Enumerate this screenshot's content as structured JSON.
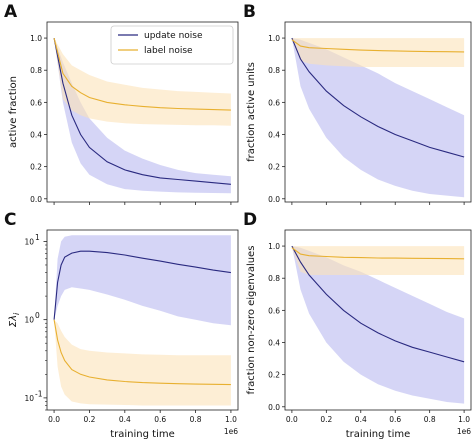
{
  "colors": {
    "update_noise": "#2a2a80",
    "update_noise_band": "#b9b9f0",
    "label_noise": "#e8b030",
    "label_noise_band": "#fbe2b9"
  },
  "legend": {
    "update_label": "update noise",
    "label_label": "label noise"
  },
  "chart_data": [
    {
      "panel": "A",
      "type": "line",
      "xlabel": "",
      "ylabel": "active fraction",
      "xlim": [
        -0.04,
        1.04
      ],
      "ylim": [
        -0.02,
        1.1
      ],
      "xticks": [],
      "yticks": [
        "0.0",
        "0.2",
        "0.4",
        "0.6",
        "0.8",
        "1.0"
      ],
      "x_multiplier": "",
      "legend": true,
      "series": [
        {
          "name": "update noise",
          "x": [
            0,
            0.05,
            0.1,
            0.15,
            0.2,
            0.3,
            0.4,
            0.5,
            0.6,
            0.7,
            0.8,
            0.9,
            1.0
          ],
          "y": [
            1.0,
            0.72,
            0.52,
            0.4,
            0.32,
            0.23,
            0.18,
            0.15,
            0.13,
            0.12,
            0.11,
            0.1,
            0.09
          ],
          "lower": [
            1.0,
            0.6,
            0.35,
            0.22,
            0.15,
            0.09,
            0.06,
            0.05,
            0.045,
            0.04,
            0.038,
            0.036,
            0.035
          ],
          "upper": [
            1.0,
            0.85,
            0.72,
            0.6,
            0.5,
            0.38,
            0.3,
            0.25,
            0.21,
            0.18,
            0.16,
            0.15,
            0.14
          ]
        },
        {
          "name": "label noise",
          "x": [
            0,
            0.05,
            0.1,
            0.15,
            0.2,
            0.3,
            0.4,
            0.5,
            0.6,
            0.7,
            0.8,
            0.9,
            1.0
          ],
          "y": [
            1.0,
            0.78,
            0.7,
            0.66,
            0.63,
            0.6,
            0.585,
            0.575,
            0.567,
            0.562,
            0.558,
            0.555,
            0.552
          ],
          "lower": [
            1.0,
            0.62,
            0.55,
            0.52,
            0.5,
            0.48,
            0.47,
            0.465,
            0.462,
            0.46,
            0.458,
            0.457,
            0.455
          ],
          "upper": [
            1.0,
            0.9,
            0.83,
            0.8,
            0.77,
            0.73,
            0.71,
            0.69,
            0.68,
            0.67,
            0.665,
            0.66,
            0.655
          ]
        }
      ]
    },
    {
      "panel": "B",
      "type": "line",
      "xlabel": "",
      "ylabel": "fraction active units",
      "xlim": [
        -0.04,
        1.04
      ],
      "ylim": [
        -0.02,
        1.1
      ],
      "xticks": [],
      "yticks": [
        "0.0",
        "0.2",
        "0.4",
        "0.6",
        "0.8",
        "1.0"
      ],
      "x_multiplier": "",
      "legend": false,
      "series": [
        {
          "name": "update noise",
          "x": [
            0,
            0.05,
            0.1,
            0.2,
            0.3,
            0.4,
            0.5,
            0.6,
            0.7,
            0.8,
            0.9,
            1.0
          ],
          "y": [
            1.0,
            0.87,
            0.79,
            0.67,
            0.58,
            0.51,
            0.45,
            0.4,
            0.36,
            0.32,
            0.29,
            0.26
          ],
          "lower": [
            1.0,
            0.7,
            0.56,
            0.38,
            0.26,
            0.18,
            0.12,
            0.08,
            0.05,
            0.03,
            0.02,
            0.01
          ],
          "upper": [
            1.0,
            0.99,
            0.97,
            0.93,
            0.88,
            0.83,
            0.78,
            0.72,
            0.67,
            0.62,
            0.57,
            0.52
          ]
        },
        {
          "name": "label noise",
          "x": [
            0,
            0.05,
            0.1,
            0.2,
            0.3,
            0.4,
            0.5,
            0.6,
            0.7,
            0.8,
            0.9,
            1.0
          ],
          "y": [
            0.99,
            0.95,
            0.94,
            0.935,
            0.93,
            0.925,
            0.922,
            0.92,
            0.918,
            0.916,
            0.915,
            0.914
          ],
          "lower": [
            0.99,
            0.86,
            0.84,
            0.83,
            0.825,
            0.82,
            0.82,
            0.82,
            0.82,
            0.82,
            0.82,
            0.82
          ],
          "upper": [
            1.0,
            1.0,
            1.0,
            1.0,
            1.0,
            1.0,
            1.0,
            1.0,
            1.0,
            1.0,
            1.0,
            1.0
          ]
        }
      ]
    },
    {
      "panel": "C",
      "type": "line",
      "yscale": "log",
      "xlabel": "training time",
      "ylabel": "Σλ",
      "ylabel_subscript": "i",
      "xlim": [
        -0.04,
        1.04
      ],
      "ylim": [
        0.07,
        14
      ],
      "xticks": [
        "0.0",
        "0.2",
        "0.4",
        "0.6",
        "0.8",
        "1.0"
      ],
      "yticks": [
        {
          "value": 0.1,
          "base": "10",
          "exp": "-1"
        },
        {
          "value": 1,
          "base": "10",
          "exp": "0"
        },
        {
          "value": 10,
          "base": "10",
          "exp": "1"
        }
      ],
      "x_multiplier": "1e6",
      "legend": false,
      "series": [
        {
          "name": "update noise",
          "x": [
            0,
            0.02,
            0.04,
            0.06,
            0.1,
            0.15,
            0.2,
            0.3,
            0.4,
            0.5,
            0.6,
            0.7,
            0.8,
            0.9,
            1.0
          ],
          "y": [
            1.0,
            3.0,
            5.0,
            6.3,
            7.1,
            7.5,
            7.5,
            7.2,
            6.7,
            6.1,
            5.6,
            5.1,
            4.7,
            4.3,
            4.0
          ],
          "lower": [
            1.0,
            1.5,
            2.0,
            2.4,
            2.6,
            2.5,
            2.4,
            2.1,
            1.8,
            1.5,
            1.3,
            1.1,
            1.0,
            0.9,
            0.85
          ],
          "upper": [
            1.0,
            6.0,
            10.0,
            11.5,
            12.0,
            12.0,
            12.0,
            12.0,
            12.0,
            12.0,
            12.0,
            12.0,
            12.0,
            12.0,
            12.0
          ]
        },
        {
          "name": "label noise",
          "x": [
            0,
            0.02,
            0.04,
            0.06,
            0.1,
            0.15,
            0.2,
            0.3,
            0.4,
            0.5,
            0.6,
            0.7,
            0.8,
            0.9,
            1.0
          ],
          "y": [
            1.0,
            0.55,
            0.38,
            0.3,
            0.23,
            0.2,
            0.185,
            0.17,
            0.162,
            0.157,
            0.154,
            0.152,
            0.15,
            0.149,
            0.148
          ],
          "lower": [
            1.0,
            0.25,
            0.14,
            0.11,
            0.09,
            0.085,
            0.083,
            0.082,
            0.081,
            0.08,
            0.08,
            0.08,
            0.08,
            0.08,
            0.08
          ],
          "upper": [
            1.0,
            0.9,
            0.72,
            0.6,
            0.48,
            0.42,
            0.4,
            0.38,
            0.37,
            0.36,
            0.355,
            0.35,
            0.35,
            0.35,
            0.35
          ]
        }
      ]
    },
    {
      "panel": "D",
      "type": "line",
      "xlabel": "training time",
      "ylabel": "fraction non-zero eigenvalues",
      "xlim": [
        -0.04,
        1.04
      ],
      "ylim": [
        -0.02,
        1.1
      ],
      "xticks": [
        "0.0",
        "0.2",
        "0.4",
        "0.6",
        "0.8",
        "1.0"
      ],
      "yticks": [
        "0.0",
        "0.2",
        "0.4",
        "0.6",
        "0.8",
        "1.0"
      ],
      "x_multiplier": "1e6",
      "legend": false,
      "series": [
        {
          "name": "update noise",
          "x": [
            0,
            0.05,
            0.1,
            0.2,
            0.3,
            0.4,
            0.5,
            0.6,
            0.7,
            0.8,
            0.9,
            1.0
          ],
          "y": [
            1.0,
            0.9,
            0.82,
            0.7,
            0.6,
            0.52,
            0.46,
            0.41,
            0.37,
            0.34,
            0.31,
            0.28
          ],
          "lower": [
            1.0,
            0.73,
            0.58,
            0.4,
            0.28,
            0.2,
            0.14,
            0.1,
            0.07,
            0.05,
            0.03,
            0.02
          ],
          "upper": [
            1.0,
            0.99,
            0.97,
            0.93,
            0.88,
            0.84,
            0.79,
            0.74,
            0.69,
            0.64,
            0.59,
            0.55
          ]
        },
        {
          "name": "label noise",
          "x": [
            0,
            0.05,
            0.1,
            0.2,
            0.3,
            0.4,
            0.5,
            0.6,
            0.7,
            0.8,
            0.9,
            1.0
          ],
          "y": [
            0.99,
            0.95,
            0.94,
            0.935,
            0.93,
            0.928,
            0.926,
            0.925,
            0.924,
            0.923,
            0.922,
            0.921
          ],
          "lower": [
            0.99,
            0.84,
            0.82,
            0.82,
            0.82,
            0.82,
            0.82,
            0.82,
            0.82,
            0.82,
            0.82,
            0.82
          ],
          "upper": [
            1.0,
            1.0,
            1.0,
            1.0,
            1.0,
            1.0,
            1.0,
            1.0,
            1.0,
            1.0,
            1.0,
            1.0
          ]
        }
      ]
    }
  ]
}
